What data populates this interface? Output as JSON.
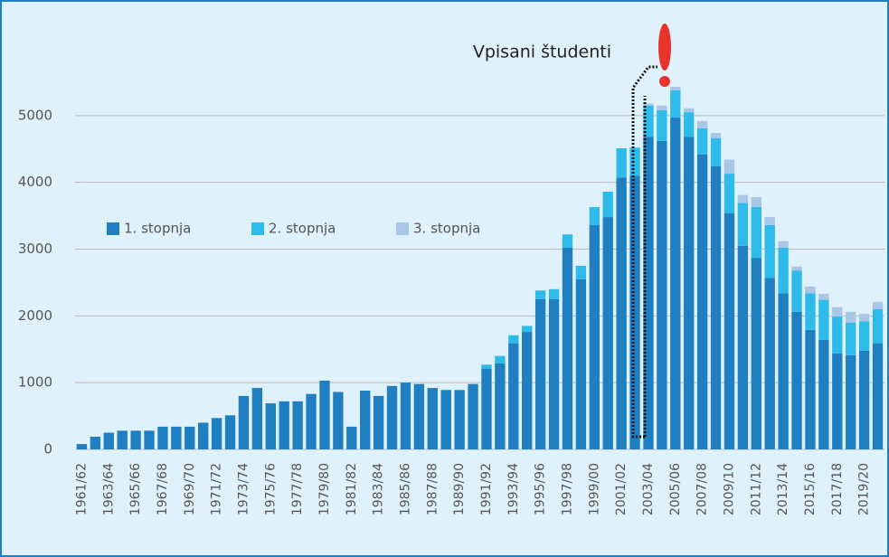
{
  "chart_data": {
    "type": "stacked_bar",
    "title": "Vpisani študenti",
    "categories": [
      "1961/62",
      null,
      "1963/64",
      null,
      "1965/66",
      null,
      "1967/68",
      null,
      "1969/70",
      null,
      "1971/72",
      null,
      "1973/74",
      null,
      "1975/76",
      null,
      "1977/78",
      null,
      "1979/80",
      null,
      "1981/82",
      null,
      "1983/84",
      null,
      "1985/86",
      null,
      "1987/88",
      null,
      "1989/90",
      null,
      "1991/92",
      null,
      "1993/94",
      null,
      "1995/96",
      null,
      "1997/98",
      null,
      "1999/00",
      null,
      "2001/02",
      null,
      "2003/04",
      null,
      "2005/06",
      null,
      "2007/08",
      null,
      "2009/10",
      null,
      "2011/12",
      null,
      "2013/14",
      null,
      "2015/16",
      null,
      "2017/18",
      null,
      "2019/20",
      null
    ],
    "series": [
      {
        "name": "1. stopnja",
        "color": "#1f7fc1",
        "values": [
          80,
          190,
          250,
          280,
          280,
          280,
          340,
          340,
          340,
          400,
          470,
          510,
          800,
          920,
          690,
          720,
          720,
          830,
          1030,
          860,
          340,
          880,
          800,
          950,
          1000,
          980,
          920,
          890,
          890,
          980,
          1210,
          1290,
          1590,
          1760,
          2250,
          2250,
          3020,
          2550,
          3360,
          3480,
          4070,
          4100,
          4680,
          4620,
          4970,
          4680,
          4420,
          4240,
          3540,
          3050,
          2870,
          2570,
          2340,
          2060,
          1790,
          1640,
          1440,
          1410,
          1480,
          1590
        ]
      },
      {
        "name": "2. stopnja",
        "color": "#2ebbe9",
        "values": [
          0,
          0,
          0,
          0,
          0,
          0,
          0,
          0,
          0,
          0,
          0,
          0,
          0,
          0,
          0,
          0,
          0,
          0,
          0,
          0,
          0,
          0,
          0,
          0,
          0,
          0,
          0,
          0,
          0,
          0,
          60,
          110,
          120,
          90,
          130,
          150,
          200,
          200,
          270,
          380,
          440,
          420,
          470,
          460,
          410,
          370,
          390,
          420,
          590,
          640,
          760,
          790,
          680,
          620,
          550,
          600,
          550,
          490,
          440,
          510
        ]
      },
      {
        "name": "3. stopnja",
        "color": "#a9c6e6",
        "values": [
          0,
          0,
          0,
          0,
          0,
          0,
          0,
          0,
          0,
          0,
          0,
          0,
          0,
          0,
          0,
          0,
          0,
          0,
          0,
          0,
          0,
          0,
          0,
          0,
          0,
          0,
          0,
          0,
          0,
          0,
          0,
          0,
          0,
          0,
          0,
          0,
          0,
          0,
          0,
          0,
          0,
          0,
          30,
          70,
          50,
          60,
          110,
          80,
          210,
          120,
          150,
          120,
          100,
          60,
          100,
          90,
          140,
          160,
          110,
          110
        ]
      }
    ],
    "ylim": [
      0,
      6000
    ],
    "yticks": [
      0,
      1000,
      2000,
      3000,
      4000,
      5000
    ],
    "grid": true
  }
}
